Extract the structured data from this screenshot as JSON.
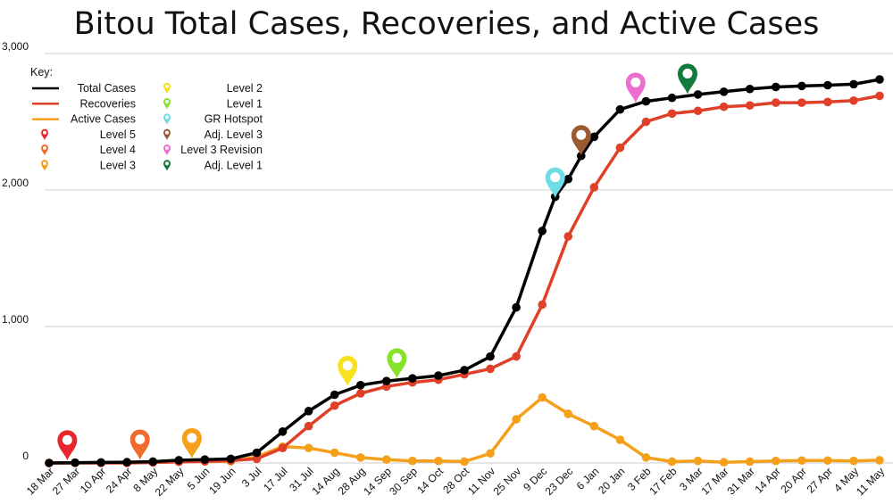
{
  "chart_data": {
    "type": "line",
    "title": "Bitou Total Cases, Recoveries, and Active Cases",
    "xlabel": "",
    "ylabel": "",
    "ylim": [
      0,
      3000
    ],
    "yticks": [
      0,
      1000,
      2000,
      3000
    ],
    "ytick_labels": [
      "0",
      "1,000",
      "2,000",
      "3,000"
    ],
    "grid": "horizontal",
    "legend_placement": "top-left",
    "legend_title": "Key:",
    "x": [
      "18 Mar",
      "27 Mar",
      "10 Apr",
      "24 Apr",
      "8 May",
      "22 May",
      "5 Jun",
      "19 Jun",
      "3 Jul",
      "17 Jul",
      "31 Jul",
      "14 Aug",
      "28 Aug",
      "14 Sep",
      "30 Sep",
      "14 Oct",
      "28 Oct",
      "11 Nov",
      "25 Nov",
      "9 Dec",
      "23 Dec",
      "6 Jan",
      "20 Jan",
      "3 Feb",
      "17 Feb",
      "3 Mar",
      "17 Mar",
      "31 Mar",
      "14 Apr",
      "20 Apr",
      "27 Apr",
      "4 May",
      "11 May"
    ],
    "series": [
      {
        "name": "Total Cases",
        "color": "#000000",
        "points": [
          [
            0,
            0
          ],
          [
            1,
            2
          ],
          [
            2,
            4
          ],
          [
            3,
            6
          ],
          [
            4,
            10
          ],
          [
            5,
            20
          ],
          [
            6,
            25
          ],
          [
            7,
            30
          ],
          [
            8,
            75
          ],
          [
            9,
            230
          ],
          [
            10,
            380
          ],
          [
            11,
            500
          ],
          [
            12,
            570
          ],
          [
            13,
            600
          ],
          [
            14,
            620
          ],
          [
            15,
            640
          ],
          [
            16,
            680
          ],
          [
            17,
            780
          ],
          [
            18,
            1140
          ],
          [
            19,
            1700
          ],
          [
            19.5,
            1950
          ],
          [
            20,
            2080
          ],
          [
            20.5,
            2250
          ],
          [
            21,
            2390
          ],
          [
            22,
            2590
          ],
          [
            23,
            2650
          ],
          [
            24,
            2675
          ],
          [
            25,
            2700
          ],
          [
            26,
            2720
          ],
          [
            27,
            2740
          ],
          [
            28,
            2755
          ],
          [
            29,
            2762
          ],
          [
            30,
            2768
          ],
          [
            31,
            2775
          ],
          [
            32,
            2810
          ]
        ]
      },
      {
        "name": "Recoveries",
        "color": "#e0402a",
        "points": [
          [
            0,
            0
          ],
          [
            1,
            0
          ],
          [
            2,
            0
          ],
          [
            3,
            0
          ],
          [
            4,
            3
          ],
          [
            5,
            8
          ],
          [
            6,
            12
          ],
          [
            7,
            18
          ],
          [
            8,
            30
          ],
          [
            9,
            110
          ],
          [
            10,
            270
          ],
          [
            11,
            420
          ],
          [
            12,
            510
          ],
          [
            13,
            560
          ],
          [
            14,
            590
          ],
          [
            15,
            610
          ],
          [
            16,
            650
          ],
          [
            17,
            690
          ],
          [
            18,
            780
          ],
          [
            19,
            1160
          ],
          [
            20,
            1660
          ],
          [
            21,
            2020
          ],
          [
            22,
            2310
          ],
          [
            23,
            2500
          ],
          [
            24,
            2560
          ],
          [
            25,
            2580
          ],
          [
            26,
            2610
          ],
          [
            27,
            2620
          ],
          [
            28,
            2640
          ],
          [
            29,
            2640
          ],
          [
            30,
            2645
          ],
          [
            31,
            2655
          ],
          [
            32,
            2690
          ]
        ]
      },
      {
        "name": "Active Cases",
        "color": "#f5a01a",
        "points": [
          [
            0,
            0
          ],
          [
            1,
            2
          ],
          [
            2,
            3
          ],
          [
            3,
            5
          ],
          [
            4,
            6
          ],
          [
            5,
            10
          ],
          [
            6,
            11
          ],
          [
            7,
            12
          ],
          [
            8,
            45
          ],
          [
            9,
            120
          ],
          [
            10,
            110
          ],
          [
            11,
            75
          ],
          [
            12,
            40
          ],
          [
            13,
            25
          ],
          [
            14,
            15
          ],
          [
            15,
            15
          ],
          [
            16,
            10
          ],
          [
            17,
            70
          ],
          [
            18,
            320
          ],
          [
            19,
            480
          ],
          [
            20,
            360
          ],
          [
            21,
            270
          ],
          [
            22,
            170
          ],
          [
            23,
            40
          ],
          [
            24,
            10
          ],
          [
            25,
            15
          ],
          [
            26,
            5
          ],
          [
            27,
            10
          ],
          [
            28,
            15
          ],
          [
            29,
            18
          ],
          [
            30,
            18
          ],
          [
            31,
            15
          ],
          [
            32,
            20
          ]
        ]
      }
    ],
    "markers": [
      {
        "name": "Level 5",
        "color": "#e8262b",
        "x": 0.7,
        "y": 5
      },
      {
        "name": "Level 4",
        "color": "#ef6c2a",
        "x": 3.5,
        "y": 10
      },
      {
        "name": "Level 3",
        "color": "#f5a01a",
        "x": 5.5,
        "y": 20
      },
      {
        "name": "Level 2",
        "color": "#f7e21b",
        "x": 11.5,
        "y": 550
      },
      {
        "name": "Level 1",
        "color": "#86e22b",
        "x": 13.4,
        "y": 605
      },
      {
        "name": "GR Hotspot",
        "color": "#6fdde6",
        "x": 19.5,
        "y": 1930
      },
      {
        "name": "Adj. Level 3",
        "color": "#9a5b33",
        "x": 20.5,
        "y": 2240
      },
      {
        "name": "Level 3 Revision",
        "color": "#ec6fcf",
        "x": 22.6,
        "y": 2625
      },
      {
        "name": "Adj. Level 1",
        "color": "#127a3c",
        "x": 24.6,
        "y": 2690
      }
    ]
  }
}
